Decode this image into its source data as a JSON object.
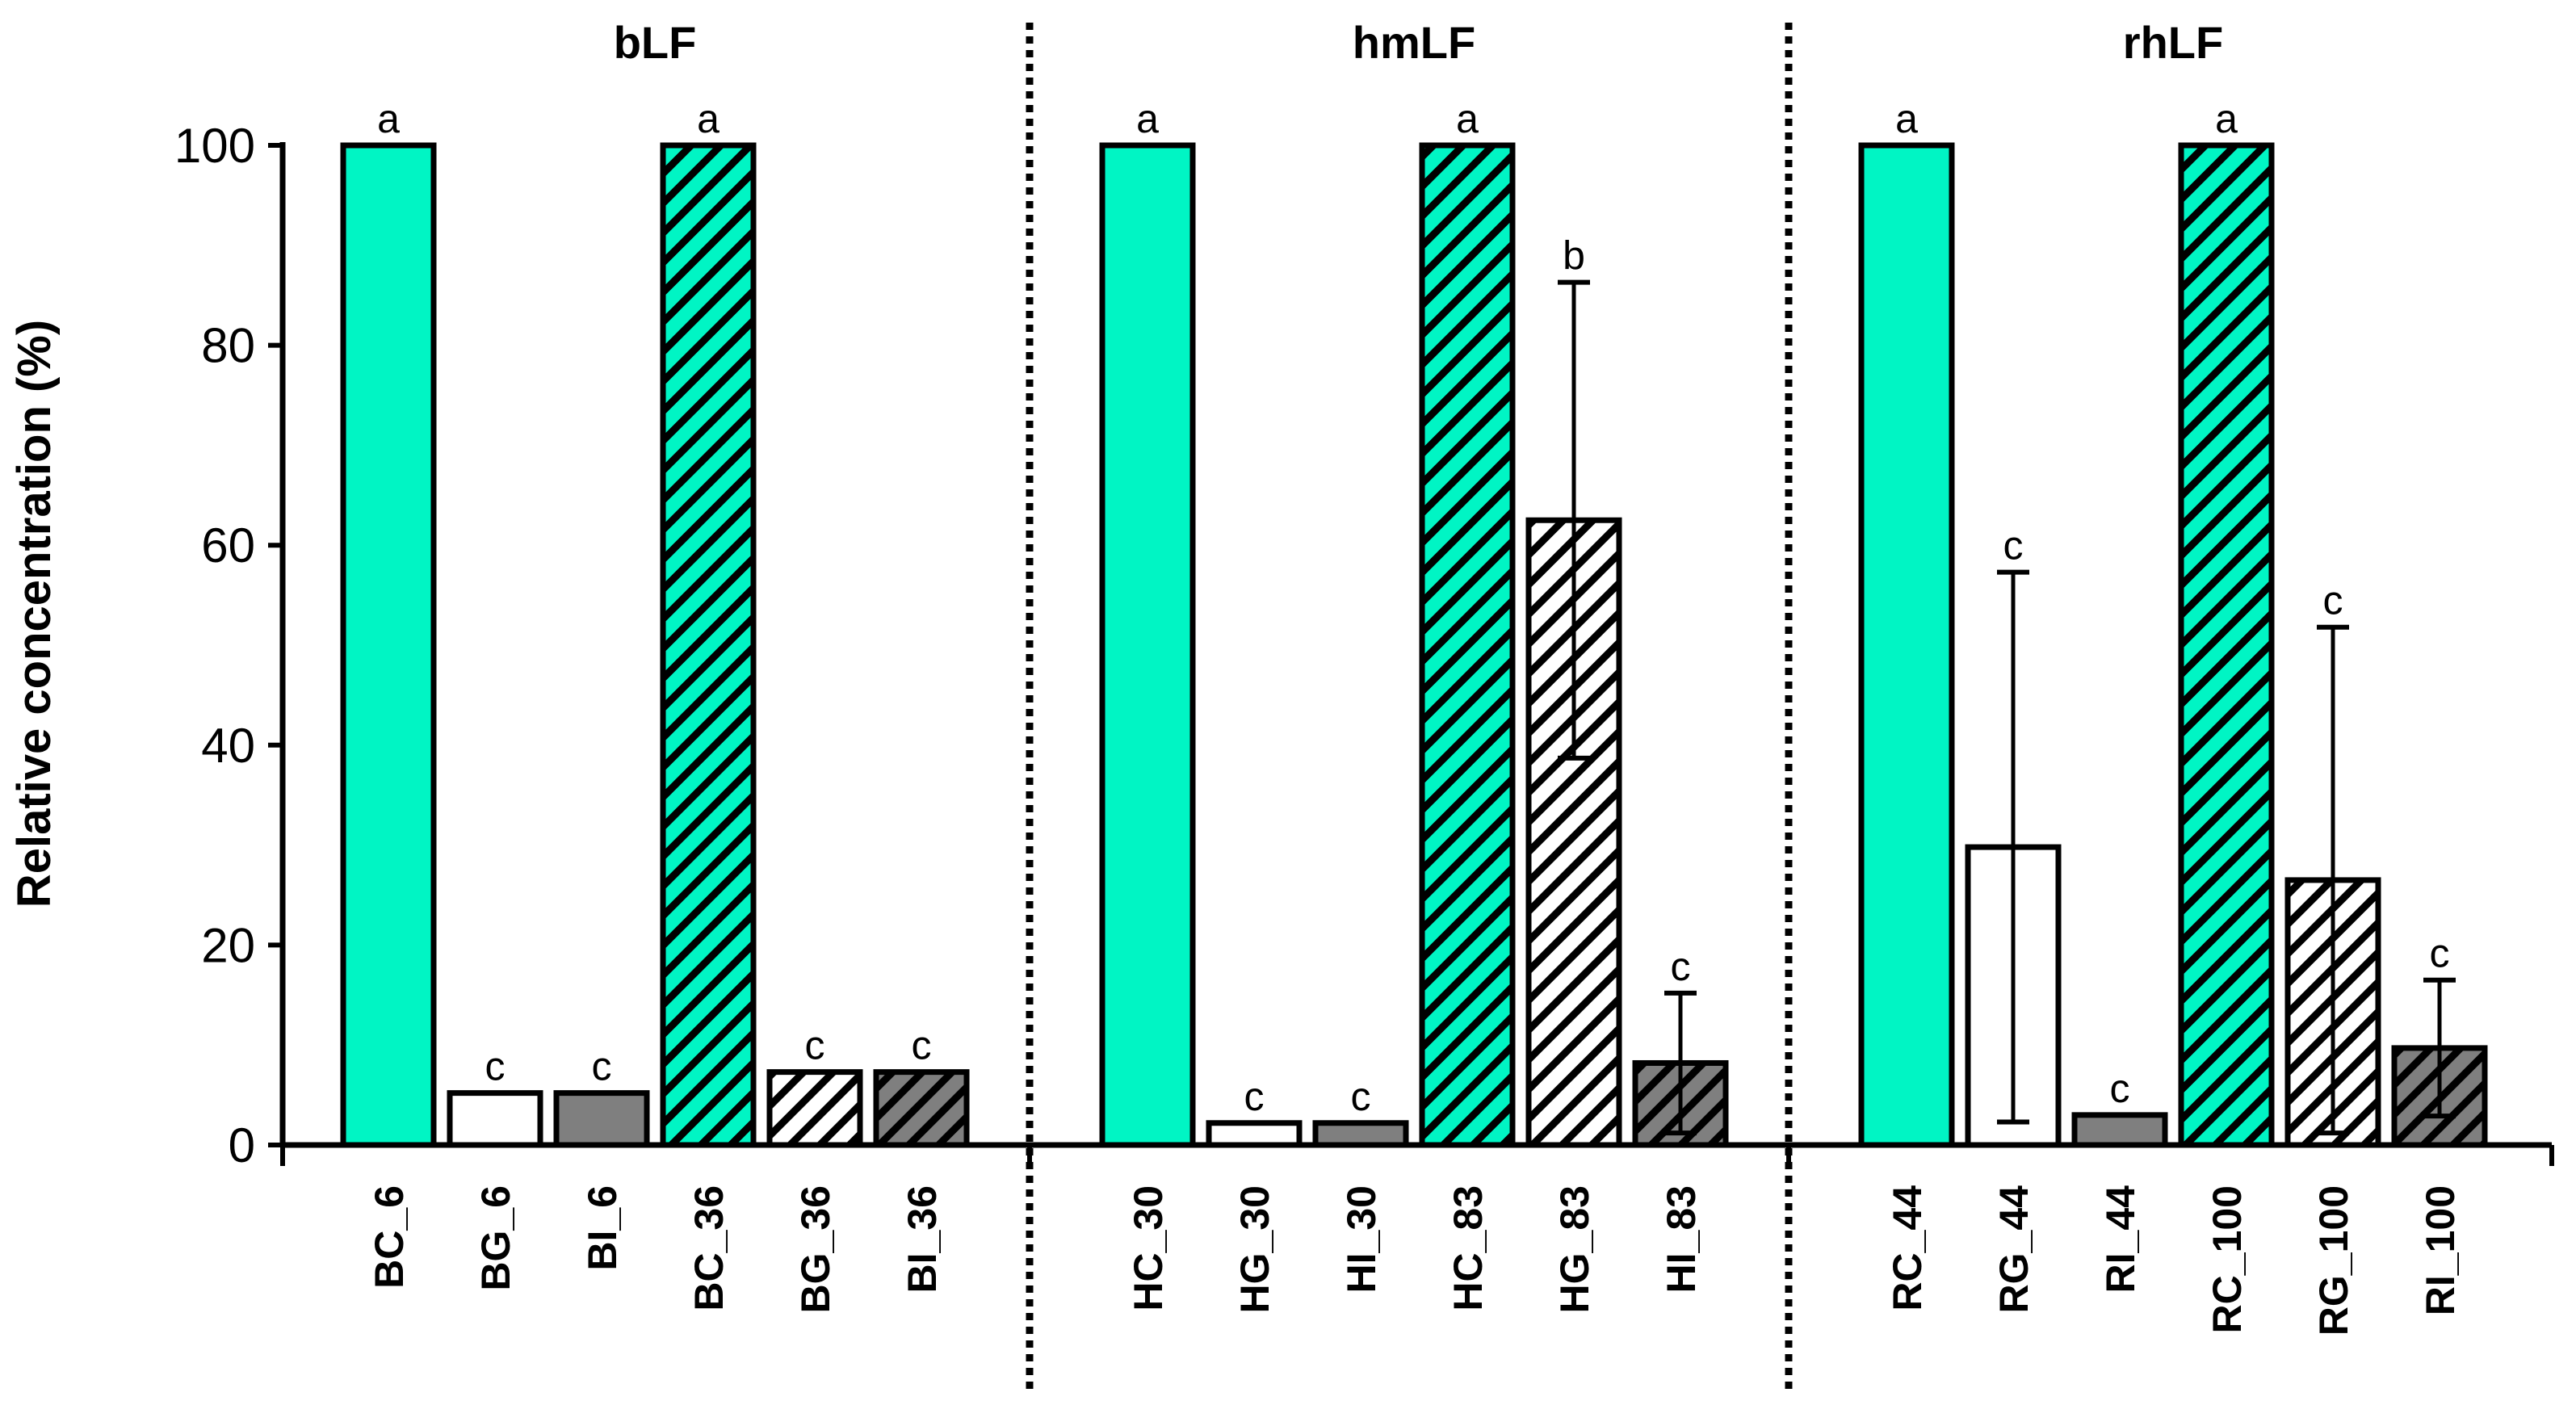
{
  "chart_data": {
    "type": "bar",
    "title": "",
    "xlabel": "",
    "ylabel": "Relative concentration (%)",
    "ylim": [
      0,
      100
    ],
    "yticks": [
      0,
      20,
      40,
      60,
      80,
      100
    ],
    "colors": {
      "teal": "#00f5c4",
      "white": "#ffffff",
      "gray": "#7f7f7f",
      "hatch": "#000000",
      "outline": "#000000"
    },
    "groups": [
      {
        "name": "bLF",
        "bars": [
          {
            "label": "BC_6",
            "value": 100,
            "error": 0,
            "sig": "a",
            "fill": "teal",
            "hatched": false
          },
          {
            "label": "BG_6",
            "value": 5.2,
            "error": 0,
            "sig": "c",
            "fill": "white",
            "hatched": false
          },
          {
            "label": "BI_6",
            "value": 5.2,
            "error": 0,
            "sig": "c",
            "fill": "gray",
            "hatched": false
          },
          {
            "label": "BC_36",
            "value": 100,
            "error": 0,
            "sig": "a",
            "fill": "teal",
            "hatched": true
          },
          {
            "label": "BG_36",
            "value": 7.3,
            "error": 0,
            "sig": "c",
            "fill": "white",
            "hatched": true
          },
          {
            "label": "BI_36",
            "value": 7.3,
            "error": 0,
            "sig": "c",
            "fill": "gray",
            "hatched": true
          }
        ]
      },
      {
        "name": "hmLF",
        "bars": [
          {
            "label": "HC_30",
            "value": 100,
            "error": 0,
            "sig": "a",
            "fill": "teal",
            "hatched": false
          },
          {
            "label": "HG_30",
            "value": 2.2,
            "error": 0,
            "sig": "c",
            "fill": "white",
            "hatched": false
          },
          {
            "label": "HI_30",
            "value": 2.2,
            "error": 0,
            "sig": "c",
            "fill": "gray",
            "hatched": false
          },
          {
            "label": "HC_83",
            "value": 100,
            "error": 0,
            "sig": "a",
            "fill": "teal",
            "hatched": true
          },
          {
            "label": "HG_83",
            "value": 62.5,
            "error": 23.8,
            "sig": "b",
            "fill": "white",
            "hatched": true
          },
          {
            "label": "HI_83",
            "value": 8.2,
            "error": 7.0,
            "sig": "c",
            "fill": "gray",
            "hatched": true
          }
        ]
      },
      {
        "name": "rhLF",
        "bars": [
          {
            "label": "RC_44",
            "value": 100,
            "error": 0,
            "sig": "a",
            "fill": "teal",
            "hatched": false
          },
          {
            "label": "RG_44",
            "value": 29.8,
            "error": 27.5,
            "sig": "c",
            "fill": "white",
            "hatched": false
          },
          {
            "label": "RI_44",
            "value": 3.0,
            "error": 0,
            "sig": "c",
            "fill": "gray",
            "hatched": false
          },
          {
            "label": "RC_100",
            "value": 100,
            "error": 0,
            "sig": "a",
            "fill": "teal",
            "hatched": true
          },
          {
            "label": "RG_100",
            "value": 26.5,
            "error": 25.3,
            "sig": "c",
            "fill": "white",
            "hatched": true
          },
          {
            "label": "RI_100",
            "value": 9.7,
            "error": 6.8,
            "sig": "c",
            "fill": "gray",
            "hatched": true
          }
        ]
      }
    ]
  }
}
